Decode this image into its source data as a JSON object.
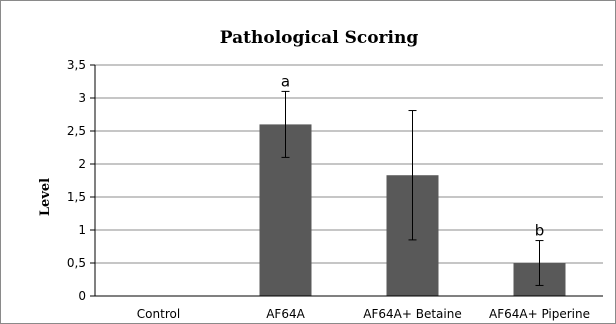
{
  "chart_data": {
    "type": "bar",
    "title": "Pathological Scoring",
    "xlabel": "",
    "ylabel": "Level",
    "categories": [
      "Control",
      "AF64A",
      "AF64A+ Betaine",
      "AF64A+ Piperine"
    ],
    "values": [
      0,
      2.6,
      1.83,
      0.5
    ],
    "error": [
      0,
      0.5,
      0.98,
      0.34
    ],
    "annotations": [
      "",
      "a",
      "",
      "b"
    ],
    "ylim": [
      0,
      3.5
    ],
    "yticks": [
      0,
      0.5,
      1,
      1.5,
      2,
      2.5,
      3,
      3.5
    ],
    "ytick_labels": [
      "0",
      "0,5",
      "1",
      "1,5",
      "2",
      "2,5",
      "3",
      "3,5"
    ],
    "grid": true,
    "legend": "none",
    "bar_color": "#595959",
    "grid_color": "#8c8c8c"
  }
}
